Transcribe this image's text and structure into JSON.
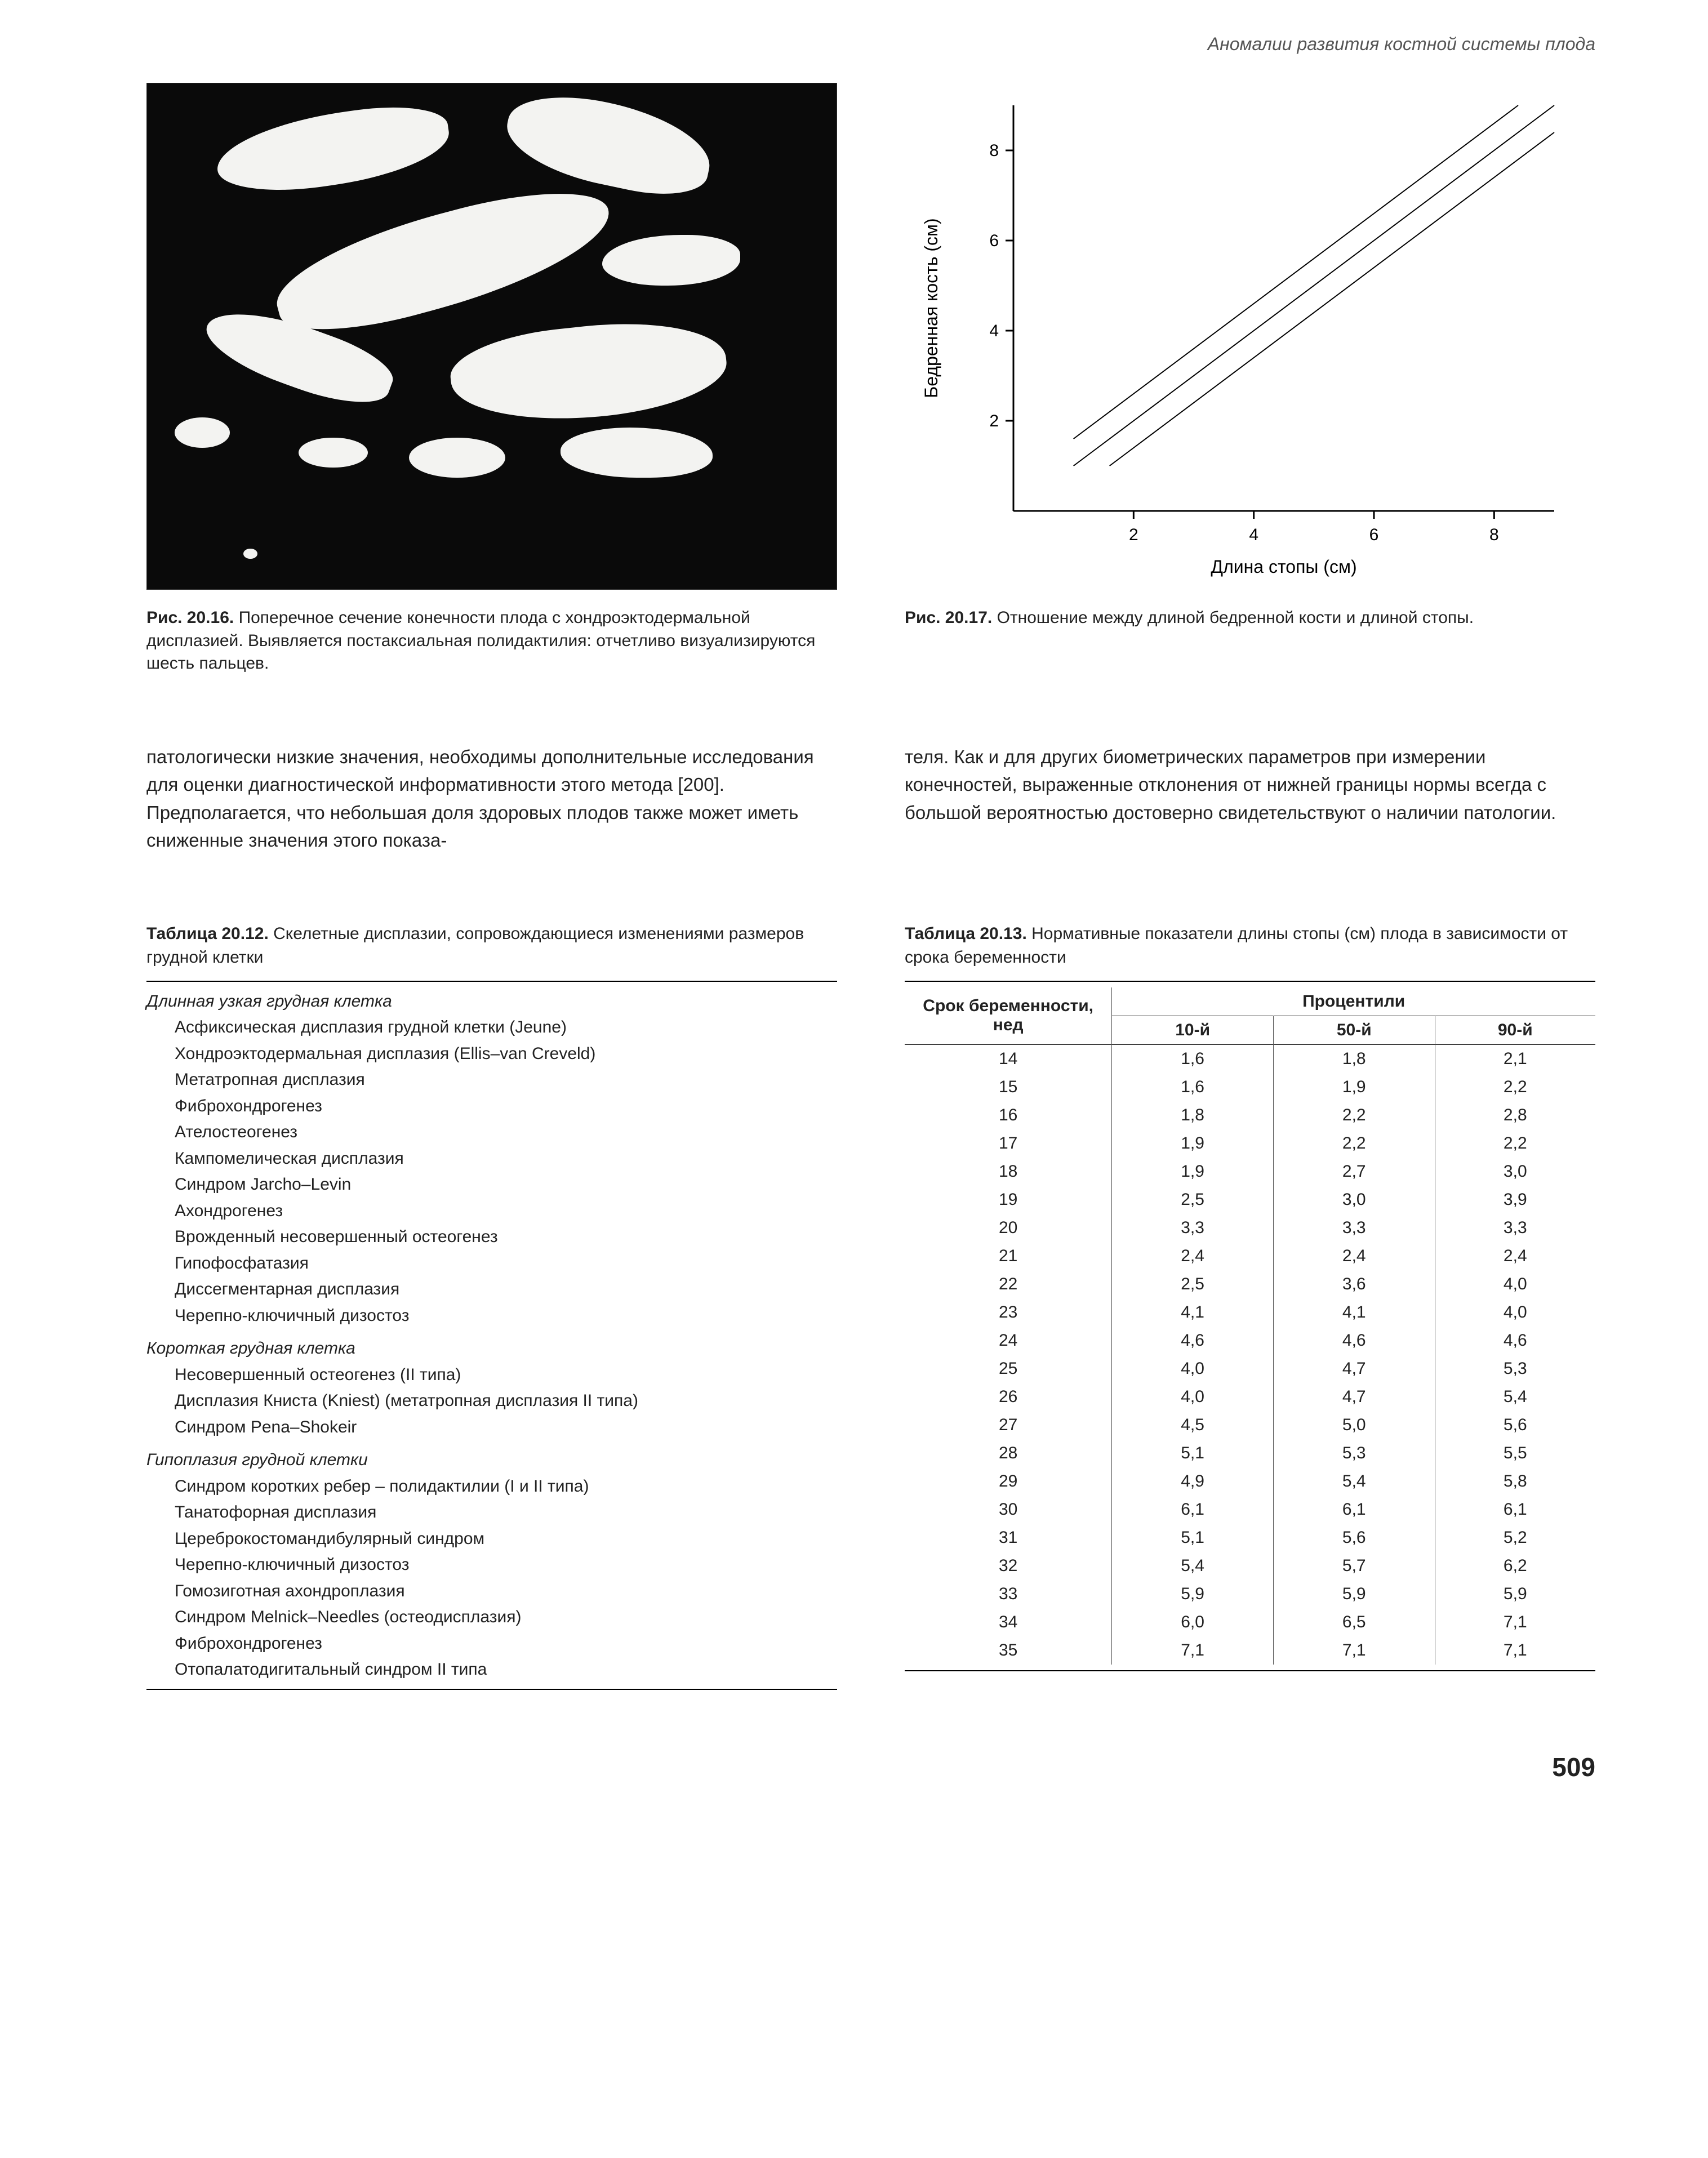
{
  "running_head": "Аномалии развития костной системы плода",
  "page_number": "509",
  "fig16": {
    "label": "Рис. 20.16.",
    "text": "Поперечное сечение конечности плода с хондроэктодермальной дисплазией. Выявляется постаксиальная полидактилия: отчетливо визуализируются шесть пальцев."
  },
  "fig17": {
    "label": "Рис. 20.17.",
    "text": "Отношение между длиной бедренной кости и длиной стопы."
  },
  "chart": {
    "xlabel": "Длина стопы (см)",
    "ylabel": "Бедренная кость (см)",
    "xlim": [
      0,
      9
    ],
    "ylim": [
      0,
      9
    ],
    "xticks": [
      2,
      4,
      6,
      8
    ],
    "yticks": [
      2,
      4,
      6,
      8
    ],
    "lines": [
      {
        "x1": 1.0,
        "y1": 1.0,
        "x2": 9.0,
        "y2": 9.0,
        "width": 2
      },
      {
        "x1": 1.0,
        "y1": 1.6,
        "x2": 8.4,
        "y2": 9.0,
        "width": 2
      },
      {
        "x1": 1.6,
        "y1": 1.0,
        "x2": 9.0,
        "y2": 8.4,
        "width": 2
      }
    ],
    "axis_color": "#000000",
    "line_color": "#000000",
    "bg_color": "#ffffff",
    "tick_fontsize": 30,
    "label_fontsize": 32
  },
  "body_left": "патологически низкие значения, необходимы дополнительные исследования для оценки диагностической информативности этого метода [200]. Предполагается, что небольшая доля здоровых плодов также может иметь сниженные значения этого показа-",
  "body_right": "теля. Как и для других биометрических параметров при измерении конечностей, выраженные отклонения от нижней границы нормы всегда с большой вероятностью достоверно свидетельствуют о наличии патологии.",
  "table12": {
    "label": "Таблица 20.12.",
    "title": "Скелетные дисплазии, сопровождающиеся изменениями размеров грудной клетки",
    "groups": [
      {
        "head": "Длинная узкая грудная клетка",
        "items": [
          "Асфиксическая дисплазия грудной клетки (Jeune)",
          "Хондроэктодермальная дисплазия (Ellis–van Creveld)",
          "Метатропная дисплазия",
          "Фиброхондрогенез",
          "Ателостеогенез",
          "Кампомелическая дисплазия",
          "Синдром Jarcho–Levin",
          "Ахондрогенез",
          "Врожденный несовершенный остеогенез",
          "Гипофосфатазия",
          "Диссегментарная дисплазия",
          "Черепно-ключичный дизостоз"
        ]
      },
      {
        "head": "Короткая грудная клетка",
        "items": [
          "Несовершенный остеогенез (II типа)",
          "Дисплазия Книста (Kniest) (метатропная дисплазия II типа)",
          "Синдром Pena–Shokeir"
        ]
      },
      {
        "head": "Гипоплазия грудной клетки",
        "items": [
          "Синдром коротких ребер – полидактилии (I и II типа)",
          "Танатофорная дисплазия",
          "Цереброкостомандибулярный синдром",
          "Черепно-ключичный дизостоз",
          "Гомозиготная ахондроплазия",
          "Синдром Melnick–Needles (остеодисплазия)",
          "Фиброхондрогенез",
          "Отопалатодигитальный синдром II типа"
        ]
      }
    ]
  },
  "table13": {
    "label": "Таблица 20.13.",
    "title": "Нормативные показатели длины стопы (см) плода в зависимости от срока беременности",
    "col_gest": "Срок беременности, нед",
    "col_pct": "Процентили",
    "cols": [
      "10-й",
      "50-й",
      "90-й"
    ],
    "rows": [
      [
        "14",
        "1,6",
        "1,8",
        "2,1"
      ],
      [
        "15",
        "1,6",
        "1,9",
        "2,2"
      ],
      [
        "16",
        "1,8",
        "2,2",
        "2,8"
      ],
      [
        "17",
        "1,9",
        "2,2",
        "2,2"
      ],
      [
        "18",
        "1,9",
        "2,7",
        "3,0"
      ],
      [
        "19",
        "2,5",
        "3,0",
        "3,9"
      ],
      [
        "20",
        "3,3",
        "3,3",
        "3,3"
      ],
      [
        "21",
        "2,4",
        "2,4",
        "2,4"
      ],
      [
        "22",
        "2,5",
        "3,6",
        "4,0"
      ],
      [
        "23",
        "4,1",
        "4,1",
        "4,0"
      ],
      [
        "24",
        "4,6",
        "4,6",
        "4,6"
      ],
      [
        "25",
        "4,0",
        "4,7",
        "5,3"
      ],
      [
        "26",
        "4,0",
        "4,7",
        "5,4"
      ],
      [
        "27",
        "4,5",
        "5,0",
        "5,6"
      ],
      [
        "28",
        "5,1",
        "5,3",
        "5,5"
      ],
      [
        "29",
        "4,9",
        "5,4",
        "5,8"
      ],
      [
        "30",
        "6,1",
        "6,1",
        "6,1"
      ],
      [
        "31",
        "5,1",
        "5,6",
        "5,2"
      ],
      [
        "32",
        "5,4",
        "5,7",
        "6,2"
      ],
      [
        "33",
        "5,9",
        "5,9",
        "5,9"
      ],
      [
        "34",
        "6,0",
        "6,5",
        "7,1"
      ],
      [
        "35",
        "7,1",
        "7,1",
        "7,1"
      ]
    ]
  }
}
